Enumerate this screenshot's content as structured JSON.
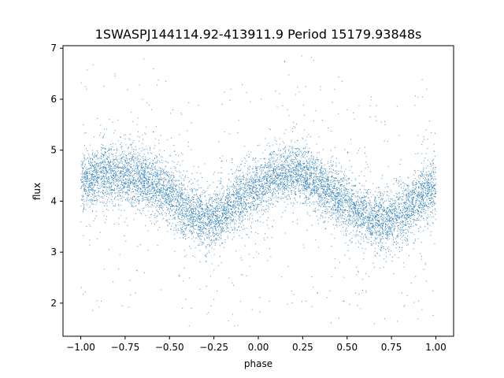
{
  "chart_data": {
    "type": "scatter",
    "title": "1SWASPJ144114.92-413911.9 Period 15179.93848s",
    "xlabel": "phase",
    "ylabel": "flux",
    "xlim": [
      -1.1,
      1.1
    ],
    "ylim": [
      1.35,
      7.05
    ],
    "xticks": [
      -1.0,
      -0.75,
      -0.5,
      -0.25,
      0.0,
      0.25,
      0.5,
      0.75,
      1.0
    ],
    "xtick_labels": [
      "−1.00",
      "−0.75",
      "−0.50",
      "−0.25",
      "0.00",
      "0.25",
      "0.50",
      "0.75",
      "1.00"
    ],
    "yticks": [
      2,
      3,
      4,
      5,
      6,
      7
    ],
    "ytick_labels": [
      "2",
      "3",
      "4",
      "5",
      "6",
      "7"
    ],
    "grid": false,
    "legend": "none",
    "marker_color": "#1f77b4",
    "series": [
      {
        "phase": [
          -1.0,
          -0.9,
          -0.8,
          -0.7,
          -0.6,
          -0.5,
          -0.4,
          -0.3,
          -0.25,
          -0.2,
          -0.1,
          0.0,
          0.1,
          0.2,
          0.3,
          0.4,
          0.5,
          0.6,
          0.7,
          0.75,
          0.8,
          0.9,
          1.0
        ],
        "flux": [
          4.35,
          4.5,
          4.55,
          4.5,
          4.35,
          4.1,
          3.8,
          3.65,
          3.65,
          3.75,
          4.05,
          4.3,
          4.5,
          4.55,
          4.45,
          4.2,
          3.95,
          3.7,
          3.6,
          3.65,
          3.75,
          4.05,
          4.3
        ]
      }
    ]
  }
}
